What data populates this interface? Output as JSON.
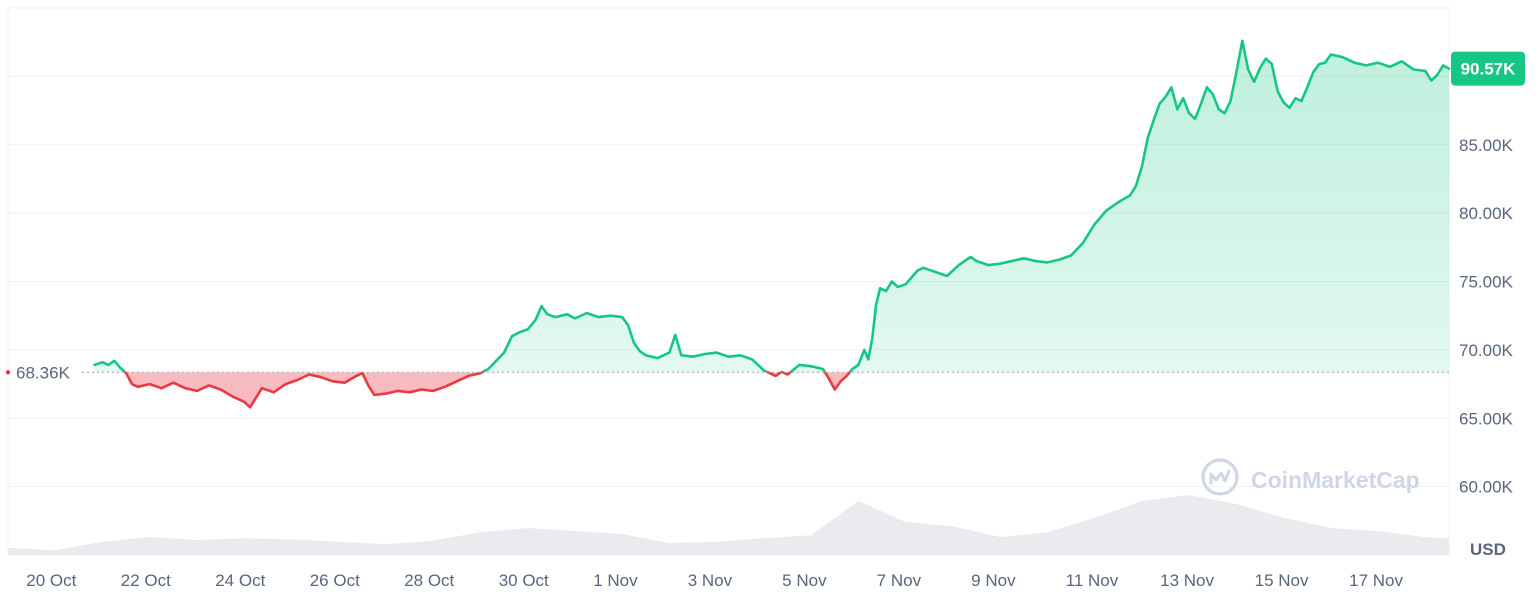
{
  "watermark": "CoinMarketCap",
  "colors": {
    "up": "#16c784",
    "down": "#ea3943",
    "up_fill": "#16c784",
    "down_fill": "#ea3943",
    "grid": "#eff2f5",
    "axis_text": "#58667e",
    "ref_line": "#a6b0c3",
    "badge_bg": "#16c784",
    "badge_text": "#ffffff",
    "volume": "#e9ebee",
    "watermark": "#cfd6e4"
  },
  "chart_data": {
    "type": "line",
    "title": "",
    "xlabel": "",
    "ylabel": "USD",
    "unit_label": "USD",
    "ylim": [
      55000,
      95000
    ],
    "xlim": [
      "2024-10-19T00:00",
      "2024-11-18T12:00"
    ],
    "grid": true,
    "y_ticks": [
      60000,
      65000,
      70000,
      75000,
      80000,
      85000
    ],
    "y_tick_labels": [
      "60.00K",
      "65.00K",
      "70.00K",
      "75.00K",
      "80.00K",
      "85.00K"
    ],
    "x_ticks": [
      "2024-10-20",
      "2024-10-22",
      "2024-10-24",
      "2024-10-26",
      "2024-10-28",
      "2024-10-30",
      "2024-11-01",
      "2024-11-03",
      "2024-11-05",
      "2024-11-07",
      "2024-11-09",
      "2024-11-11",
      "2024-11-13",
      "2024-11-15",
      "2024-11-17"
    ],
    "x_tick_labels": [
      "20 Oct",
      "22 Oct",
      "24 Oct",
      "26 Oct",
      "28 Oct",
      "30 Oct",
      "1 Nov",
      "3 Nov",
      "5 Nov",
      "7 Nov",
      "9 Nov",
      "11 Nov",
      "13 Nov",
      "15 Nov",
      "17 Nov"
    ],
    "reference": {
      "value": 68360,
      "label": "68.36K"
    },
    "current": {
      "value": 90570,
      "label": "90.57K"
    },
    "series": [
      {
        "points": [
          [
            "2024-10-20T20:00",
            68900
          ],
          [
            "2024-10-21T00:00",
            69100
          ],
          [
            "2024-10-21T03:00",
            68900
          ],
          [
            "2024-10-21T06:00",
            69200
          ],
          [
            "2024-10-21T09:00",
            68700
          ],
          [
            "2024-10-21T12:00",
            68300
          ],
          [
            "2024-10-21T15:00",
            67500
          ],
          [
            "2024-10-21T18:00",
            67300
          ],
          [
            "2024-10-22T00:00",
            67500
          ],
          [
            "2024-10-22T06:00",
            67200
          ],
          [
            "2024-10-22T12:00",
            67600
          ],
          [
            "2024-10-22T18:00",
            67200
          ],
          [
            "2024-10-23T00:00",
            67000
          ],
          [
            "2024-10-23T06:00",
            67400
          ],
          [
            "2024-10-23T12:00",
            67100
          ],
          [
            "2024-10-23T18:00",
            66600
          ],
          [
            "2024-10-24T00:00",
            66200
          ],
          [
            "2024-10-24T03:00",
            65800
          ],
          [
            "2024-10-24T06:00",
            66500
          ],
          [
            "2024-10-24T09:00",
            67200
          ],
          [
            "2024-10-24T15:00",
            66900
          ],
          [
            "2024-10-24T21:00",
            67500
          ],
          [
            "2024-10-25T03:00",
            67800
          ],
          [
            "2024-10-25T09:00",
            68200
          ],
          [
            "2024-10-25T15:00",
            68000
          ],
          [
            "2024-10-25T21:00",
            67700
          ],
          [
            "2024-10-26T03:00",
            67600
          ],
          [
            "2024-10-26T09:00",
            68100
          ],
          [
            "2024-10-26T12:00",
            68300
          ],
          [
            "2024-10-26T15:00",
            67400
          ],
          [
            "2024-10-26T18:00",
            66700
          ],
          [
            "2024-10-27T00:00",
            66800
          ],
          [
            "2024-10-27T06:00",
            67000
          ],
          [
            "2024-10-27T12:00",
            66900
          ],
          [
            "2024-10-27T18:00",
            67100
          ],
          [
            "2024-10-28T00:00",
            67000
          ],
          [
            "2024-10-28T06:00",
            67300
          ],
          [
            "2024-10-28T12:00",
            67700
          ],
          [
            "2024-10-28T18:00",
            68100
          ],
          [
            "2024-10-29T00:00",
            68300
          ],
          [
            "2024-10-29T04:00",
            68600
          ],
          [
            "2024-10-29T08:00",
            69200
          ],
          [
            "2024-10-29T12:00",
            69800
          ],
          [
            "2024-10-29T16:00",
            71000
          ],
          [
            "2024-10-29T20:00",
            71300
          ],
          [
            "2024-10-30T00:00",
            71500
          ],
          [
            "2024-10-30T04:00",
            72200
          ],
          [
            "2024-10-30T07:00",
            73200
          ],
          [
            "2024-10-30T10:00",
            72600
          ],
          [
            "2024-10-30T14:00",
            72400
          ],
          [
            "2024-10-30T20:00",
            72600
          ],
          [
            "2024-10-31T00:00",
            72300
          ],
          [
            "2024-10-31T06:00",
            72700
          ],
          [
            "2024-10-31T12:00",
            72400
          ],
          [
            "2024-10-31T18:00",
            72500
          ],
          [
            "2024-11-01T00:00",
            72400
          ],
          [
            "2024-11-01T03:00",
            71800
          ],
          [
            "2024-11-01T06:00",
            70500
          ],
          [
            "2024-11-01T09:00",
            69900
          ],
          [
            "2024-11-01T12:00",
            69600
          ],
          [
            "2024-11-01T18:00",
            69400
          ],
          [
            "2024-11-02T00:00",
            69800
          ],
          [
            "2024-11-02T03:00",
            71100
          ],
          [
            "2024-11-02T06:00",
            69600
          ],
          [
            "2024-11-02T12:00",
            69500
          ],
          [
            "2024-11-02T18:00",
            69700
          ],
          [
            "2024-11-03T00:00",
            69800
          ],
          [
            "2024-11-03T06:00",
            69500
          ],
          [
            "2024-11-03T12:00",
            69600
          ],
          [
            "2024-11-03T18:00",
            69300
          ],
          [
            "2024-11-04T00:00",
            68500
          ],
          [
            "2024-11-04T06:00",
            68100
          ],
          [
            "2024-11-04T09:00",
            68400
          ],
          [
            "2024-11-04T12:00",
            68200
          ],
          [
            "2024-11-04T18:00",
            68900
          ],
          [
            "2024-11-05T00:00",
            68800
          ],
          [
            "2024-11-05T06:00",
            68600
          ],
          [
            "2024-11-05T09:00",
            67900
          ],
          [
            "2024-11-05T12:00",
            67100
          ],
          [
            "2024-11-05T15:00",
            67700
          ],
          [
            "2024-11-05T18:00",
            68100
          ],
          [
            "2024-11-05T21:00",
            68600
          ],
          [
            "2024-11-06T00:00",
            68900
          ],
          [
            "2024-11-06T03:00",
            70000
          ],
          [
            "2024-11-06T05:00",
            69300
          ],
          [
            "2024-11-06T07:00",
            70800
          ],
          [
            "2024-11-06T09:00",
            73300
          ],
          [
            "2024-11-06T11:00",
            74500
          ],
          [
            "2024-11-06T14:00",
            74300
          ],
          [
            "2024-11-06T17:00",
            75000
          ],
          [
            "2024-11-06T20:00",
            74600
          ],
          [
            "2024-11-07T00:00",
            74800
          ],
          [
            "2024-11-07T03:00",
            75300
          ],
          [
            "2024-11-07T06:00",
            75800
          ],
          [
            "2024-11-07T09:00",
            76000
          ],
          [
            "2024-11-07T15:00",
            75700
          ],
          [
            "2024-11-07T21:00",
            75400
          ],
          [
            "2024-11-08T03:00",
            76200
          ],
          [
            "2024-11-08T09:00",
            76800
          ],
          [
            "2024-11-08T12:00",
            76500
          ],
          [
            "2024-11-08T18:00",
            76200
          ],
          [
            "2024-11-09T00:00",
            76300
          ],
          [
            "2024-11-09T06:00",
            76500
          ],
          [
            "2024-11-09T12:00",
            76700
          ],
          [
            "2024-11-09T18:00",
            76500
          ],
          [
            "2024-11-10T00:00",
            76400
          ],
          [
            "2024-11-10T06:00",
            76600
          ],
          [
            "2024-11-10T12:00",
            76900
          ],
          [
            "2024-11-10T18:00",
            77800
          ],
          [
            "2024-11-11T00:00",
            79200
          ],
          [
            "2024-11-11T06:00",
            80200
          ],
          [
            "2024-11-11T12:00",
            80800
          ],
          [
            "2024-11-11T18:00",
            81300
          ],
          [
            "2024-11-11T21:00",
            82000
          ],
          [
            "2024-11-12T00:00",
            83400
          ],
          [
            "2024-11-12T03:00",
            85500
          ],
          [
            "2024-11-12T06:00",
            86800
          ],
          [
            "2024-11-12T09:00",
            88000
          ],
          [
            "2024-11-12T12:00",
            88500
          ],
          [
            "2024-11-12T15:00",
            89200
          ],
          [
            "2024-11-12T18:00",
            87600
          ],
          [
            "2024-11-12T21:00",
            88400
          ],
          [
            "2024-11-13T00:00",
            87300
          ],
          [
            "2024-11-13T03:00",
            86900
          ],
          [
            "2024-11-13T06:00",
            88000
          ],
          [
            "2024-11-13T09:00",
            89200
          ],
          [
            "2024-11-13T12:00",
            88700
          ],
          [
            "2024-11-13T15:00",
            87600
          ],
          [
            "2024-11-13T18:00",
            87300
          ],
          [
            "2024-11-13T21:00",
            88200
          ],
          [
            "2024-11-14T00:00",
            90300
          ],
          [
            "2024-11-14T03:00",
            92600
          ],
          [
            "2024-11-14T06:00",
            90500
          ],
          [
            "2024-11-14T09:00",
            89600
          ],
          [
            "2024-11-14T12:00",
            90600
          ],
          [
            "2024-11-14T15:00",
            91300
          ],
          [
            "2024-11-14T18:00",
            90900
          ],
          [
            "2024-11-14T21:00",
            88900
          ],
          [
            "2024-11-15T00:00",
            88100
          ],
          [
            "2024-11-15T03:00",
            87700
          ],
          [
            "2024-11-15T06:00",
            88400
          ],
          [
            "2024-11-15T09:00",
            88200
          ],
          [
            "2024-11-15T12:00",
            89200
          ],
          [
            "2024-11-15T15:00",
            90300
          ],
          [
            "2024-11-15T18:00",
            90900
          ],
          [
            "2024-11-15T21:00",
            91000
          ],
          [
            "2024-11-16T00:00",
            91600
          ],
          [
            "2024-11-16T06:00",
            91400
          ],
          [
            "2024-11-16T12:00",
            91000
          ],
          [
            "2024-11-16T18:00",
            90800
          ],
          [
            "2024-11-17T00:00",
            91000
          ],
          [
            "2024-11-17T06:00",
            90700
          ],
          [
            "2024-11-17T12:00",
            91100
          ],
          [
            "2024-11-17T18:00",
            90500
          ],
          [
            "2024-11-18T00:00",
            90400
          ],
          [
            "2024-11-18T03:00",
            89700
          ],
          [
            "2024-11-18T06:00",
            90100
          ],
          [
            "2024-11-18T09:00",
            90800
          ],
          [
            "2024-11-18T12:00",
            90570
          ]
        ]
      }
    ],
    "volume_series": [
      [
        "2024-10-19T00:00",
        0.12
      ],
      [
        "2024-10-20T00:00",
        0.08
      ],
      [
        "2024-10-21T00:00",
        0.22
      ],
      [
        "2024-10-22T00:00",
        0.3
      ],
      [
        "2024-10-23T00:00",
        0.25
      ],
      [
        "2024-10-24T00:00",
        0.28
      ],
      [
        "2024-10-25T00:00",
        0.26
      ],
      [
        "2024-10-26T00:00",
        0.22
      ],
      [
        "2024-10-27T00:00",
        0.18
      ],
      [
        "2024-10-28T00:00",
        0.24
      ],
      [
        "2024-10-29T00:00",
        0.38
      ],
      [
        "2024-10-30T00:00",
        0.45
      ],
      [
        "2024-10-31T00:00",
        0.4
      ],
      [
        "2024-11-01T00:00",
        0.35
      ],
      [
        "2024-11-02T00:00",
        0.2
      ],
      [
        "2024-11-03T00:00",
        0.22
      ],
      [
        "2024-11-04T00:00",
        0.28
      ],
      [
        "2024-11-05T00:00",
        0.33
      ],
      [
        "2024-11-06T00:00",
        0.9
      ],
      [
        "2024-11-07T00:00",
        0.55
      ],
      [
        "2024-11-08T00:00",
        0.48
      ],
      [
        "2024-11-09T00:00",
        0.3
      ],
      [
        "2024-11-10T00:00",
        0.38
      ],
      [
        "2024-11-11T00:00",
        0.62
      ],
      [
        "2024-11-12T00:00",
        0.9
      ],
      [
        "2024-11-13T00:00",
        1.0
      ],
      [
        "2024-11-14T00:00",
        0.85
      ],
      [
        "2024-11-15T00:00",
        0.62
      ],
      [
        "2024-11-16T00:00",
        0.45
      ],
      [
        "2024-11-17T00:00",
        0.4
      ],
      [
        "2024-11-18T00:00",
        0.3
      ],
      [
        "2024-11-18T12:00",
        0.28
      ]
    ]
  }
}
